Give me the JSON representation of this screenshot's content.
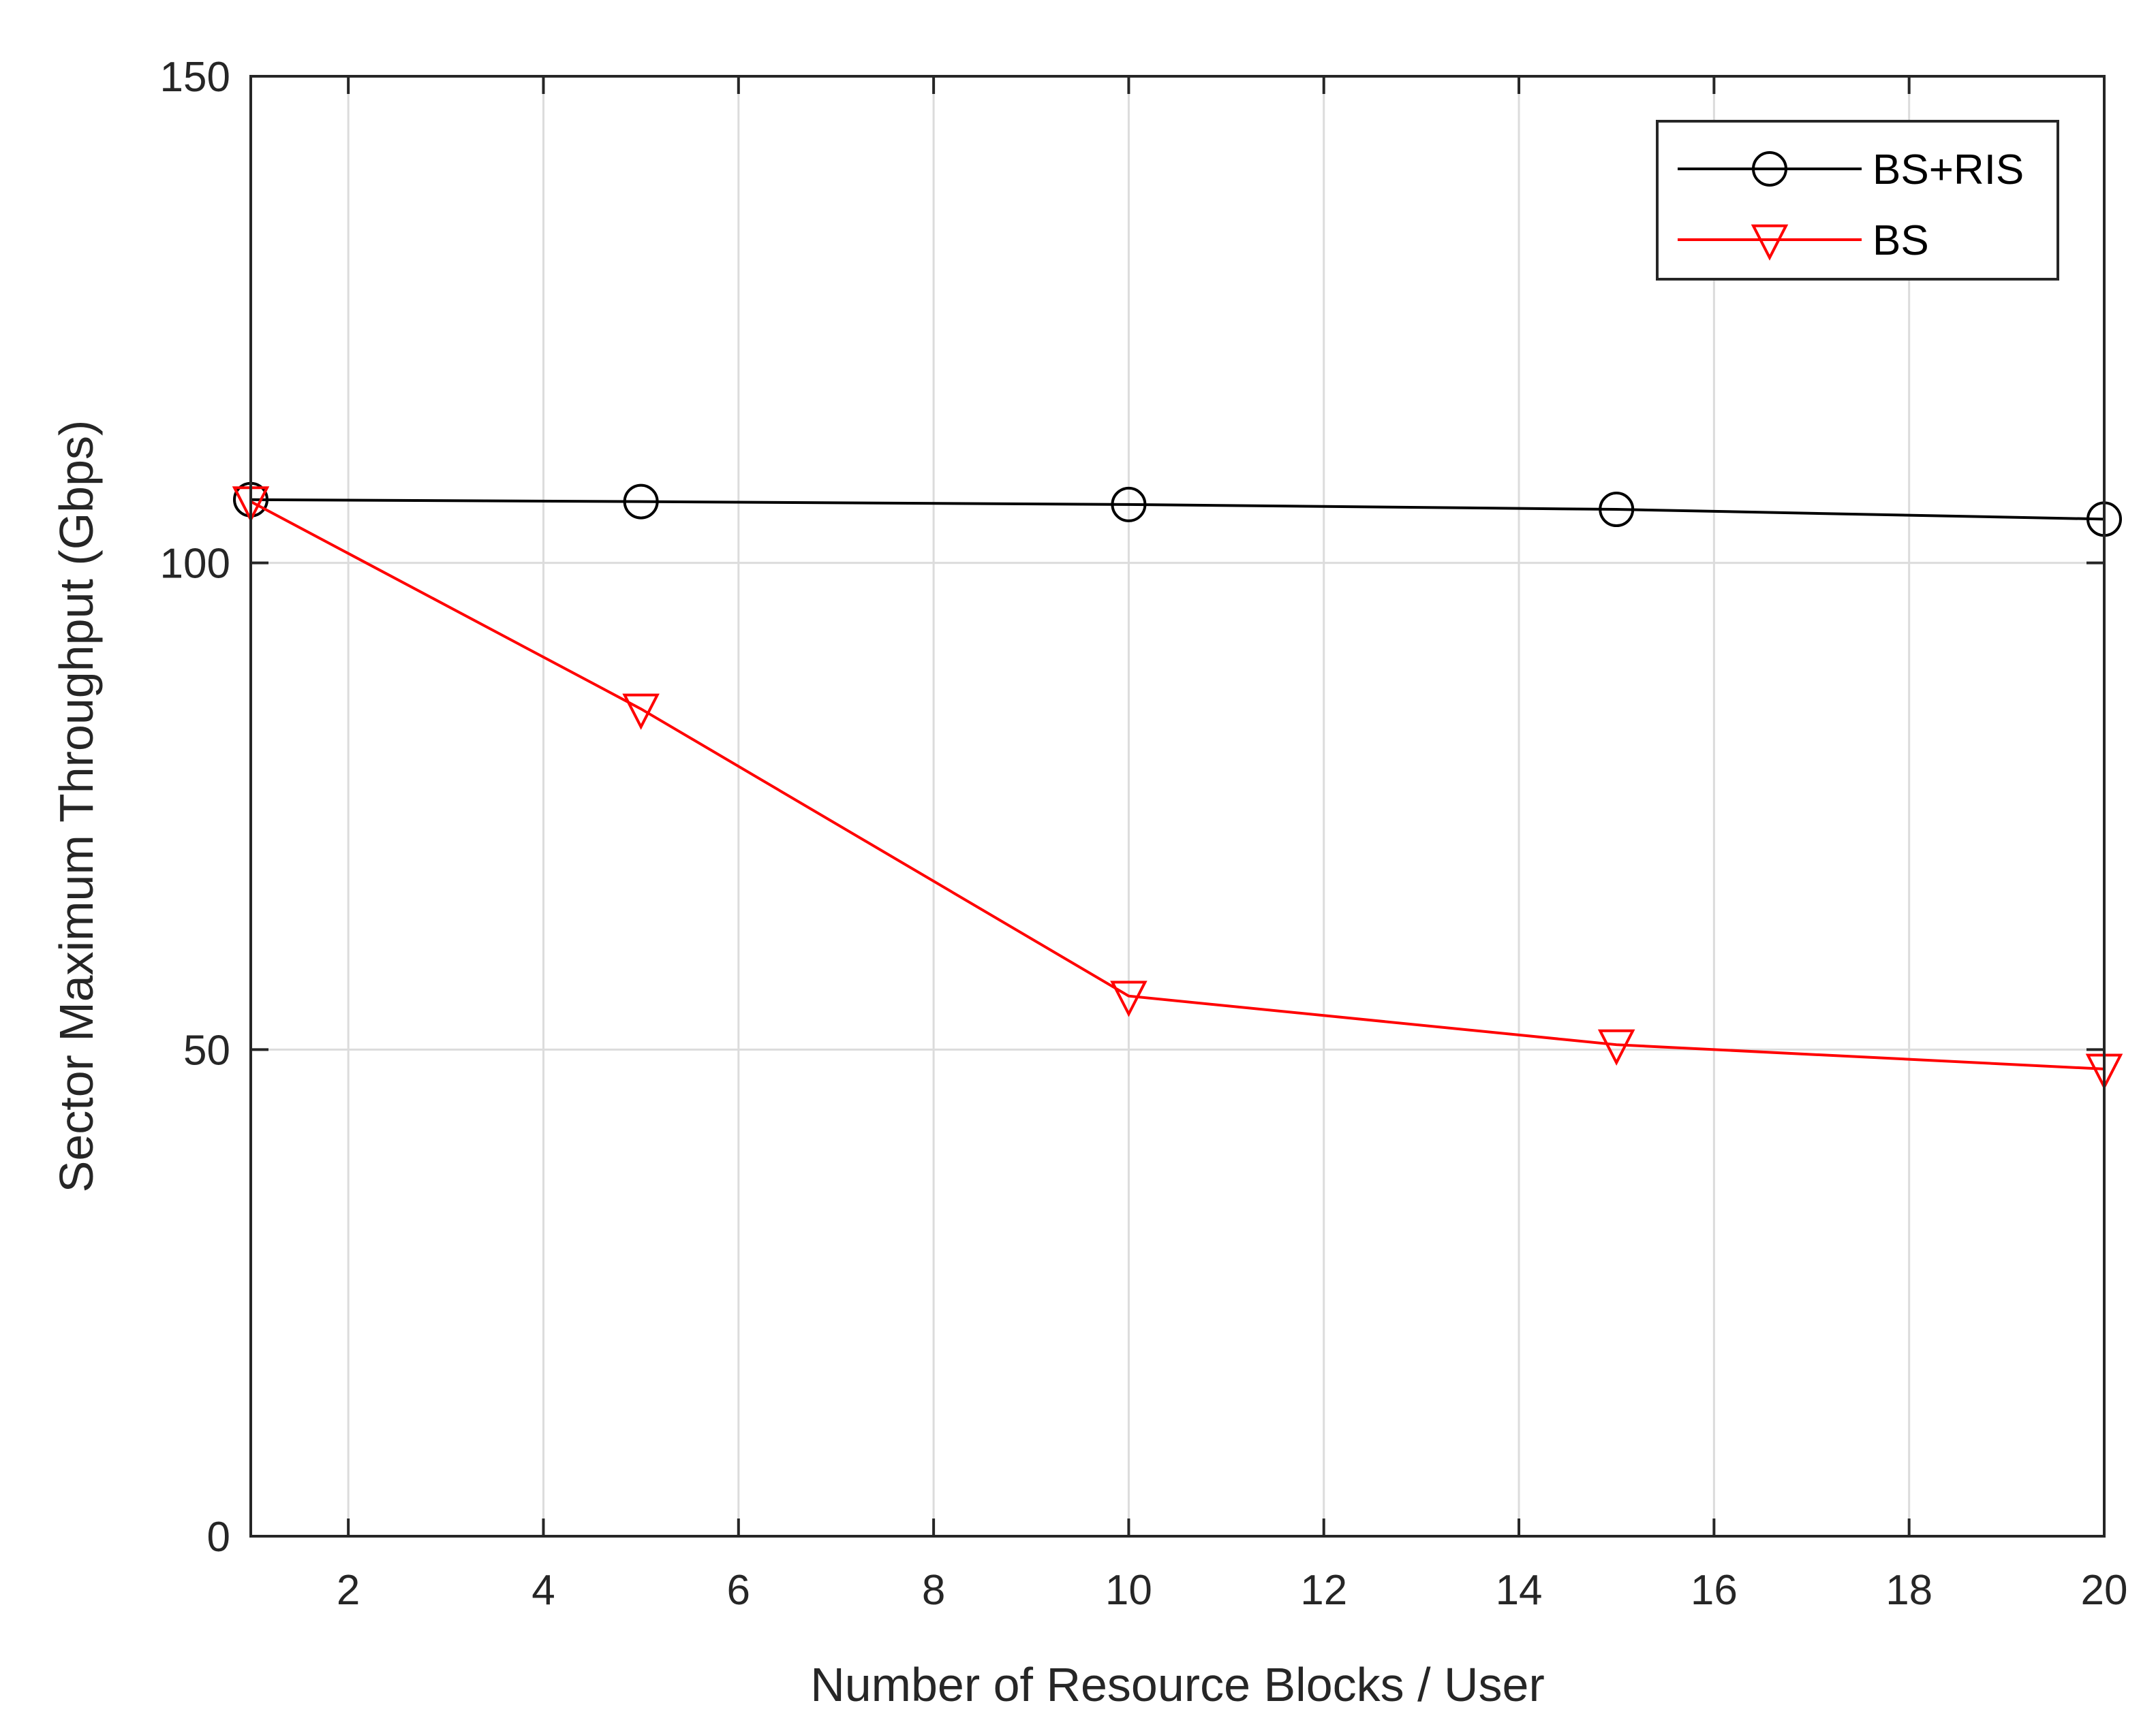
{
  "chart_data": {
    "type": "line",
    "title": "",
    "xlabel": "Number of Resource Blocks / User",
    "ylabel": "Sector Maximum Throughput (Gbps)",
    "xlim": [
      1,
      20
    ],
    "ylim": [
      0,
      150
    ],
    "xticks": [
      2,
      4,
      6,
      8,
      10,
      12,
      14,
      16,
      18,
      20
    ],
    "yticks": [
      0,
      50,
      100,
      150
    ],
    "grid": true,
    "legend_position": "top-right",
    "series": [
      {
        "name": "BS+RIS",
        "color": "#000000",
        "marker": "circle",
        "x": [
          1,
          5,
          10,
          15,
          20
        ],
        "y": [
          106.5,
          106.3,
          106.0,
          105.5,
          104.5
        ]
      },
      {
        "name": "BS",
        "color": "#ff0000",
        "marker": "triangle-down",
        "x": [
          1,
          5,
          10,
          15,
          20
        ],
        "y": [
          106.3,
          85.0,
          55.5,
          50.5,
          48.0
        ]
      }
    ]
  },
  "colors": {
    "axis": "#262626",
    "grid": "#dcdcdc",
    "background": "#ffffff"
  }
}
